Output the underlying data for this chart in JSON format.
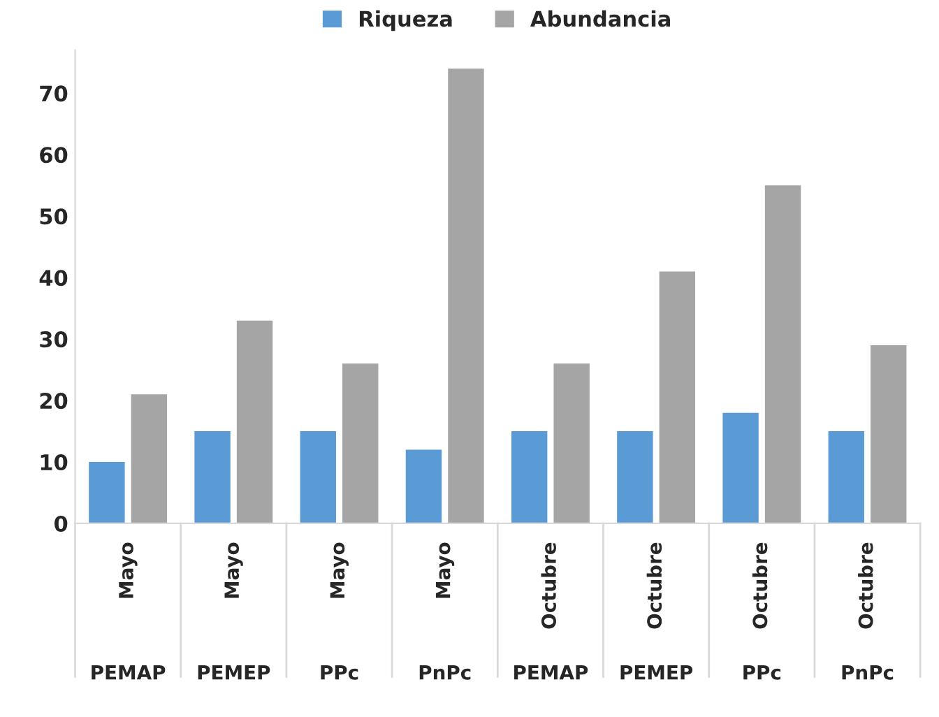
{
  "chart_data": {
    "type": "bar",
    "categories": [
      "Mayo\nPEMAP",
      "Mayo\nPEMEP",
      "Mayo\nPPc",
      "Mayo\nPnPc",
      "Octubre\nPEMAP",
      "Octubre\nPEMEP",
      "Octubre\nPPc",
      "Octubre\nPnPc"
    ],
    "series": [
      {
        "name": "Riqueza",
        "color": "#5b9bd5",
        "values": [
          10,
          15,
          15,
          12,
          15,
          15,
          18,
          15
        ]
      },
      {
        "name": "Abundancia",
        "color": "#a5a5a5",
        "values": [
          21,
          33,
          26,
          74,
          26,
          41,
          55,
          29
        ]
      }
    ],
    "ylim": [
      0,
      77
    ],
    "yticks": [
      0,
      10,
      20,
      30,
      40,
      50,
      60,
      70
    ],
    "grid": false,
    "legend": "top"
  }
}
